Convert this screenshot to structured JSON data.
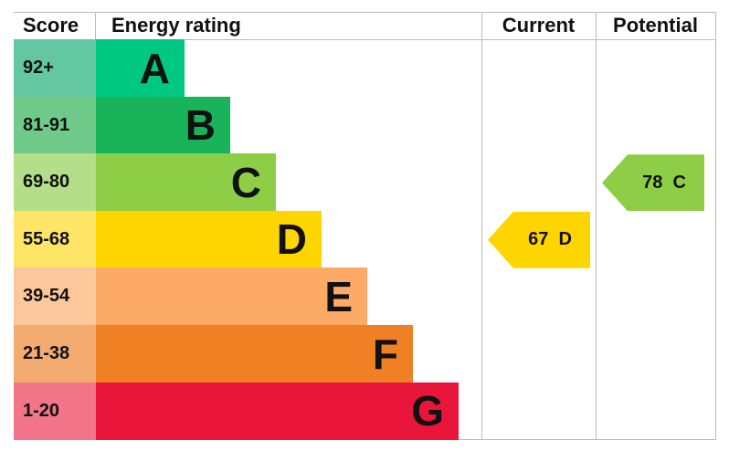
{
  "chart_data": {
    "type": "table",
    "headers": {
      "score": "Score",
      "rating": "Energy rating",
      "current": "Current",
      "potential": "Potential"
    },
    "bands": [
      {
        "letter": "A",
        "range": "92+",
        "color": "#00c781",
        "light": "#63c8a2"
      },
      {
        "letter": "B",
        "range": "81-91",
        "color": "#19b459",
        "light": "#70cb8b"
      },
      {
        "letter": "C",
        "range": "69-80",
        "color": "#8dce46",
        "light": "#b4de87"
      },
      {
        "letter": "D",
        "range": "55-68",
        "color": "#ffd500",
        "light": "#fee566"
      },
      {
        "letter": "E",
        "range": "39-54",
        "color": "#fcaa65",
        "light": "#fdc79c"
      },
      {
        "letter": "F",
        "range": "21-38",
        "color": "#ef8023",
        "light": "#f4ab6f"
      },
      {
        "letter": "G",
        "range": "1-20",
        "color": "#e9153b",
        "light": "#f27589"
      }
    ],
    "current": {
      "value": 67,
      "band": "D",
      "label": "67  D",
      "color": "#ffd500"
    },
    "potential": {
      "value": 78,
      "band": "C",
      "label": "78  C",
      "color": "#8dce46"
    }
  }
}
